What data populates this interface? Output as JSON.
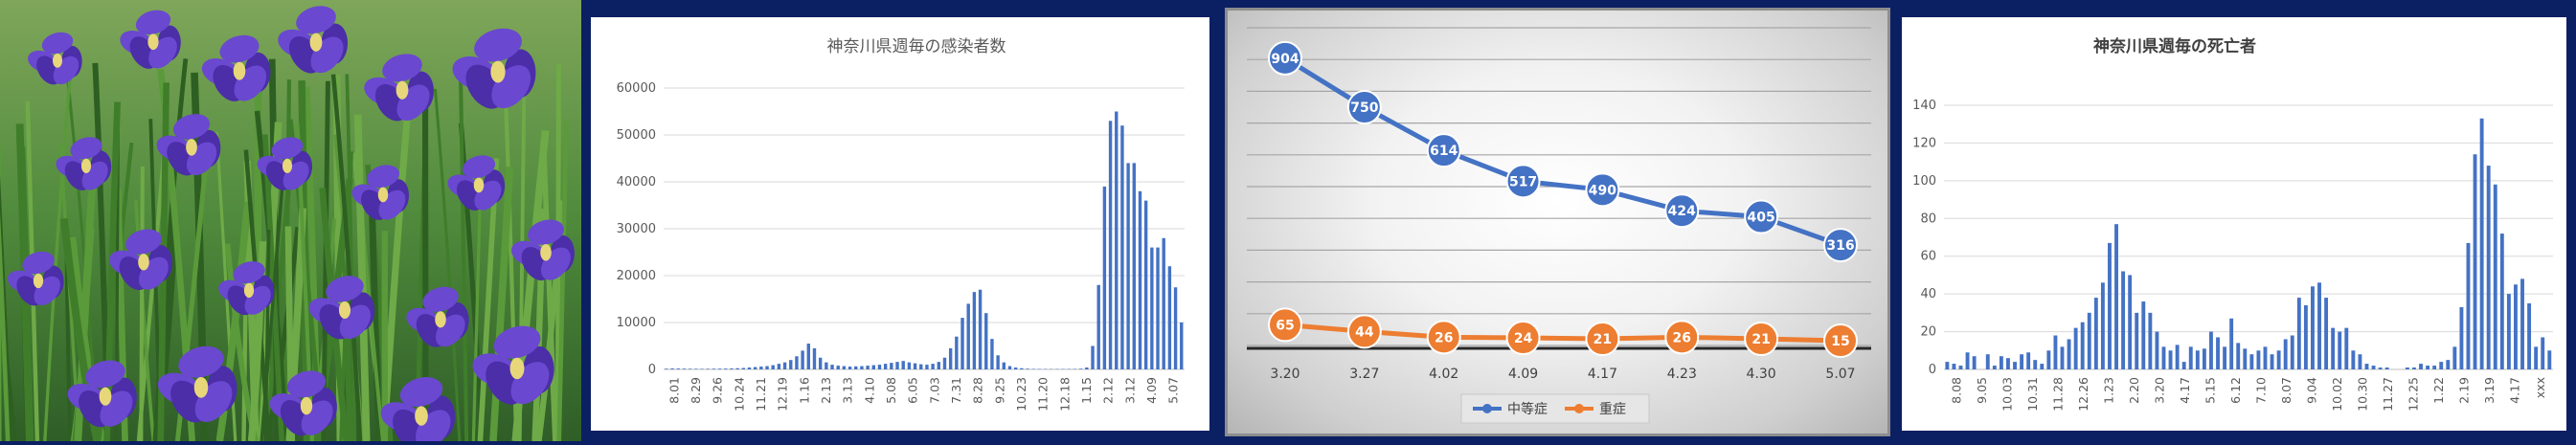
{
  "chart_data": [
    {
      "id": "infections",
      "type": "bar",
      "title": "神奈川県週毎の感染者数",
      "ylim": [
        0,
        60000
      ],
      "yticks": [
        0,
        10000,
        20000,
        30000,
        40000,
        50000,
        60000
      ],
      "xtick_labels": [
        "8.01",
        "8.29",
        "9.26",
        "10.24",
        "11.21",
        "12.19",
        "1.16",
        "2.13",
        "3.13",
        "4.10",
        "5.08",
        "6.05",
        "7.03",
        "7.31",
        "8.28",
        "9.25",
        "10.23",
        "11.20",
        "12.18",
        "1.15",
        "2.12",
        "3.12",
        "4.09",
        "5.07"
      ],
      "values": [
        150,
        200,
        180,
        160,
        140,
        130,
        120,
        130,
        150,
        160,
        170,
        200,
        250,
        300,
        400,
        500,
        600,
        700,
        900,
        1200,
        1500,
        2000,
        2800,
        4000,
        5500,
        4500,
        2500,
        1500,
        1000,
        800,
        700,
        600,
        650,
        700,
        800,
        900,
        1000,
        1200,
        1400,
        1600,
        1800,
        1500,
        1300,
        1100,
        1000,
        1200,
        1600,
        2500,
        4500,
        7000,
        11000,
        14000,
        16500,
        17000,
        12000,
        6500,
        3000,
        1500,
        700,
        400,
        250,
        150,
        100,
        90,
        80,
        70,
        70,
        80,
        90,
        100,
        150,
        400,
        5000,
        18000,
        39000,
        53000,
        55000,
        52000,
        44000,
        44000,
        38000,
        36000,
        26000,
        26000,
        28000,
        22000,
        17500,
        10000
      ]
    },
    {
      "id": "severity",
      "type": "line",
      "categories": [
        "3.20",
        "3.27",
        "4.02",
        "4.09",
        "4.17",
        "4.23",
        "4.30",
        "5.07"
      ],
      "series": [
        {
          "name": "中等症",
          "values": [
            904,
            750,
            614,
            517,
            490,
            424,
            405,
            316
          ],
          "color": "#4472c4"
        },
        {
          "name": "重症",
          "values": [
            65,
            44,
            26,
            24,
            21,
            26,
            21,
            15
          ],
          "color": "#ed7d31"
        }
      ],
      "ylim": [
        0,
        1000
      ],
      "legend_position": "bottom"
    },
    {
      "id": "deaths",
      "type": "bar",
      "title": "神奈川県週毎の死亡者",
      "ylim": [
        0,
        140
      ],
      "yticks": [
        0,
        20,
        40,
        60,
        80,
        100,
        120,
        140
      ],
      "xtick_labels": [
        "8.08",
        "9.05",
        "10.03",
        "10.31",
        "11.28",
        "12.26",
        "1.23",
        "2.20",
        "3.20",
        "4.17",
        "5.15",
        "6.12",
        "7.10",
        "8.07",
        "9.04",
        "10.02",
        "10.30",
        "11.27",
        "12.25",
        "1.22",
        "2.19",
        "3.19",
        "4.17",
        "xxx"
      ],
      "values": [
        4,
        3,
        2,
        9,
        7,
        0,
        8,
        2,
        7,
        6,
        4,
        8,
        9,
        5,
        3,
        10,
        18,
        12,
        16,
        22,
        25,
        30,
        38,
        46,
        67,
        77,
        52,
        50,
        30,
        36,
        30,
        20,
        12,
        10,
        13,
        4,
        12,
        10,
        11,
        20,
        17,
        12,
        27,
        14,
        11,
        8,
        10,
        12,
        8,
        10,
        16,
        18,
        38,
        34,
        44,
        46,
        38,
        22,
        20,
        22,
        10,
        8,
        3,
        2,
        1,
        1,
        0,
        0,
        1,
        1,
        3,
        2,
        2,
        4,
        5,
        12,
        33,
        67,
        114,
        133,
        108,
        98,
        72,
        40,
        45,
        48,
        35,
        12,
        17,
        10
      ]
    }
  ]
}
